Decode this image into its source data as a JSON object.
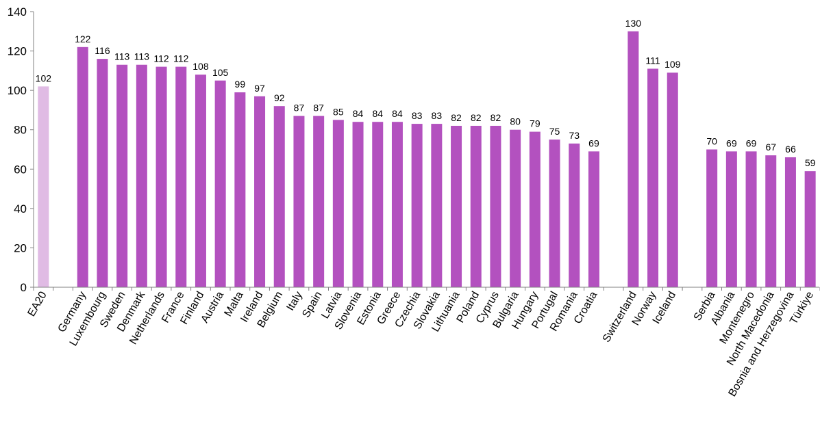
{
  "chart_data": {
    "type": "bar",
    "title": "",
    "xlabel": "",
    "ylabel": "",
    "ylim": [
      0,
      140
    ],
    "yticks": [
      0,
      20,
      40,
      60,
      80,
      100,
      120,
      140
    ],
    "grid": false,
    "legend": "none",
    "colors": {
      "reference": "#e0bbe4",
      "bar": "#b351bf",
      "axis": "#808080"
    },
    "groups": [
      {
        "categories": [
          "EA20"
        ],
        "values": [
          102
        ],
        "reference": true
      },
      {
        "categories": [
          "Germany",
          "Luxembourg",
          "Sweden",
          "Denmark",
          "Netherlands",
          "France",
          "Finland",
          "Austria",
          "Malta",
          "Ireland",
          "Belgium",
          "Italy",
          "Spain",
          "Latvia",
          "Slovenia",
          "Estonia",
          "Greece",
          "Czechia",
          "Slovakia",
          "Lithuania",
          "Poland",
          "Cyprus",
          "Bulgaria",
          "Hungary",
          "Portugal",
          "Romania",
          "Croatia"
        ],
        "values": [
          122,
          116,
          113,
          113,
          112,
          112,
          108,
          105,
          99,
          97,
          92,
          87,
          87,
          85,
          84,
          84,
          84,
          83,
          83,
          82,
          82,
          82,
          80,
          79,
          75,
          73,
          69
        ]
      },
      {
        "categories": [
          "Switzerland",
          "Norway",
          "Iceland"
        ],
        "values": [
          130,
          111,
          109
        ]
      },
      {
        "categories": [
          "Serbia",
          "Albania",
          "Montenegro",
          "North Macedonia",
          "Bosnia and Herzegovina",
          "Türkiye"
        ],
        "values": [
          70,
          69,
          69,
          67,
          66,
          59
        ]
      }
    ]
  }
}
